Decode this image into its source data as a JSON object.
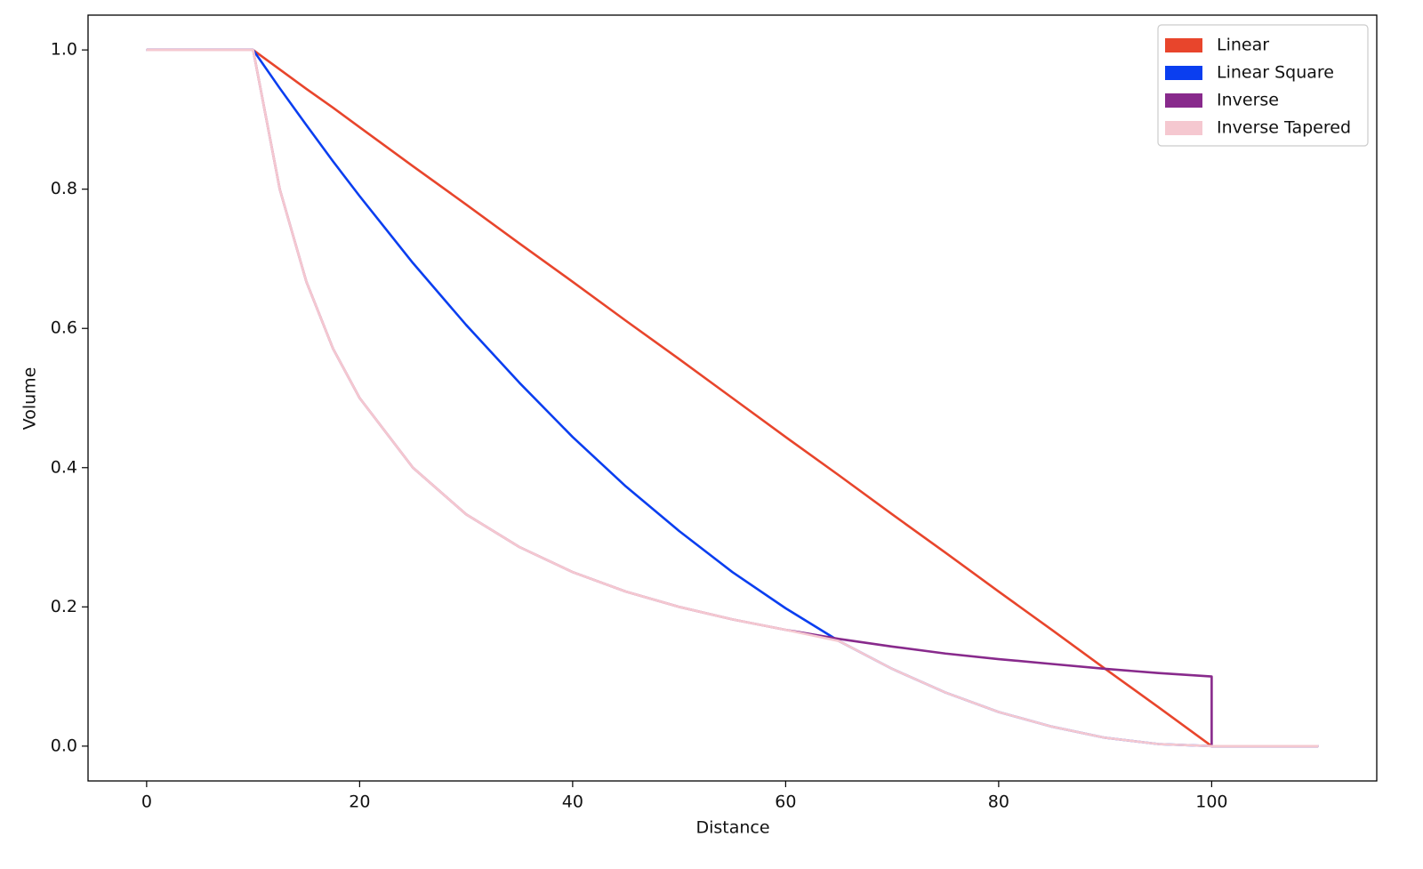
{
  "chart_data": {
    "type": "line",
    "x_label": "Distance",
    "y_label": "Volume",
    "x": [
      0,
      10,
      12.5,
      15,
      17.5,
      20,
      25,
      30,
      35,
      40,
      45,
      50,
      55,
      60,
      65,
      70,
      75,
      80,
      85,
      90,
      95,
      100,
      100,
      110
    ],
    "series": [
      {
        "name": "Linear",
        "color": "#e8452c",
        "values": [
          1,
          1,
          0.972,
          0.944,
          0.917,
          0.889,
          0.833,
          0.778,
          0.722,
          0.667,
          0.611,
          0.556,
          0.5,
          0.444,
          0.389,
          0.333,
          0.278,
          0.222,
          0.167,
          0.111,
          0.056,
          0,
          0,
          0
        ]
      },
      {
        "name": "Linear Square",
        "color": "#0a3ef0",
        "values": [
          1,
          1,
          0.945,
          0.892,
          0.84,
          0.79,
          0.694,
          0.605,
          0.522,
          0.444,
          0.373,
          0.309,
          0.25,
          0.198,
          0.151,
          0.111,
          0.077,
          0.049,
          0.028,
          0.012,
          0.003,
          0,
          0,
          0
        ]
      },
      {
        "name": "Inverse",
        "color": "#882a8c",
        "values": [
          1,
          1,
          0.8,
          0.667,
          0.571,
          0.5,
          0.4,
          0.333,
          0.286,
          0.25,
          0.222,
          0.2,
          0.182,
          0.167,
          0.154,
          0.143,
          0.133,
          0.125,
          0.118,
          0.111,
          0.105,
          0.1,
          0,
          0
        ]
      },
      {
        "name": "Inverse Tapered",
        "color": "#f5c8d0",
        "values": [
          1,
          1,
          0.8,
          0.667,
          0.571,
          0.5,
          0.4,
          0.333,
          0.286,
          0.25,
          0.222,
          0.2,
          0.182,
          0.167,
          0.151,
          0.111,
          0.077,
          0.049,
          0.028,
          0.012,
          0.003,
          0,
          0,
          0
        ]
      }
    ],
    "xlim": [
      -5.5,
      115.5
    ],
    "xticks": [
      0,
      20,
      40,
      60,
      80,
      100
    ],
    "ylim": [
      -0.05,
      1.05
    ],
    "yticks": [
      {
        "value": 0,
        "label": "0.0"
      },
      0.2,
      0.4,
      0.6,
      0.8,
      {
        "value": 1,
        "label": "1.0"
      }
    ],
    "legend": "upper right",
    "grid": false
  }
}
